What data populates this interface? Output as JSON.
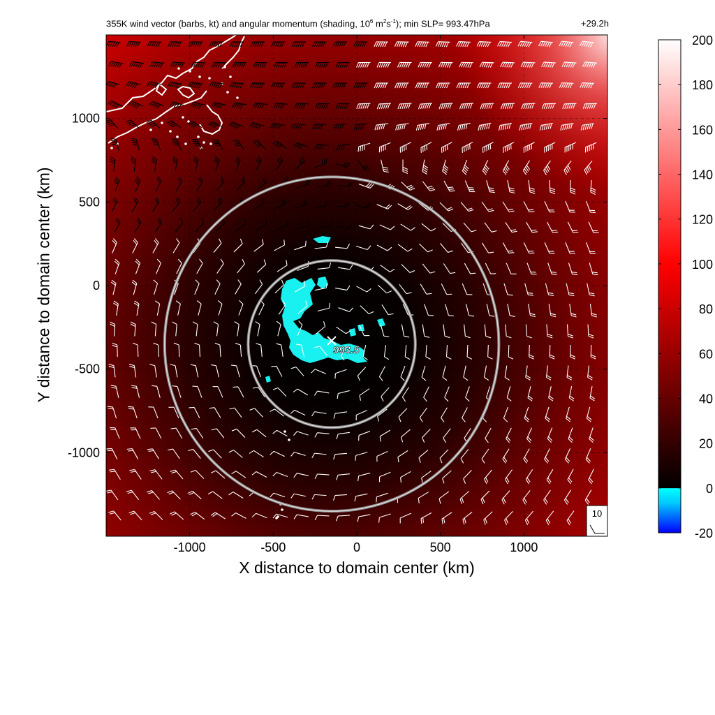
{
  "title": {
    "main_prefix": "355K wind vector (barbs, kt) and angular momentum (shading, 10",
    "sup1": "6",
    "mid1": " m",
    "sup2": "2",
    "mid2": "s",
    "sup3": "-1",
    "suffix": "); min SLP= 993.47hPa",
    "time": "+29.2h"
  },
  "chart_data": {
    "type": "heatmap",
    "title": "355K wind vector (barbs, kt) and angular momentum (shading, 10^6 m^2s^-1); min SLP= 993.47hPa",
    "time_label": "+29.2h",
    "xlabel": "X distance to domain center (km)",
    "ylabel": "Y distance to domain center (km)",
    "xlim": [
      -1500,
      1500
    ],
    "ylim": [
      -1500,
      1500
    ],
    "x_ticks": [
      "-1000",
      "-500",
      "0",
      "500",
      "1000"
    ],
    "y_ticks": [
      "1000",
      "500",
      "0",
      "-500",
      "-1000"
    ],
    "grid": "dashed",
    "storm_center": {
      "x": -150,
      "y": -350,
      "label": "993.5"
    },
    "range_rings_km": [
      500,
      1000
    ],
    "colorbar": {
      "range": [
        -20,
        200
      ],
      "ticks": [
        "200",
        "180",
        "160",
        "140",
        "120",
        "100",
        "80",
        "60",
        "40",
        "20",
        "0",
        "-20"
      ],
      "stops": [
        {
          "value": -20,
          "color": "#0000ff"
        },
        {
          "value": 0,
          "color": "#00ffff"
        },
        {
          "value": 0.01,
          "color": "#000000"
        },
        {
          "value": 100,
          "color": "#ff0000"
        },
        {
          "value": 200,
          "color": "#ffffff"
        }
      ]
    },
    "reference_barb": {
      "label": "10"
    },
    "wind_barb_units": "kt",
    "shading_units": "10^6 m^2 s^-1"
  }
}
